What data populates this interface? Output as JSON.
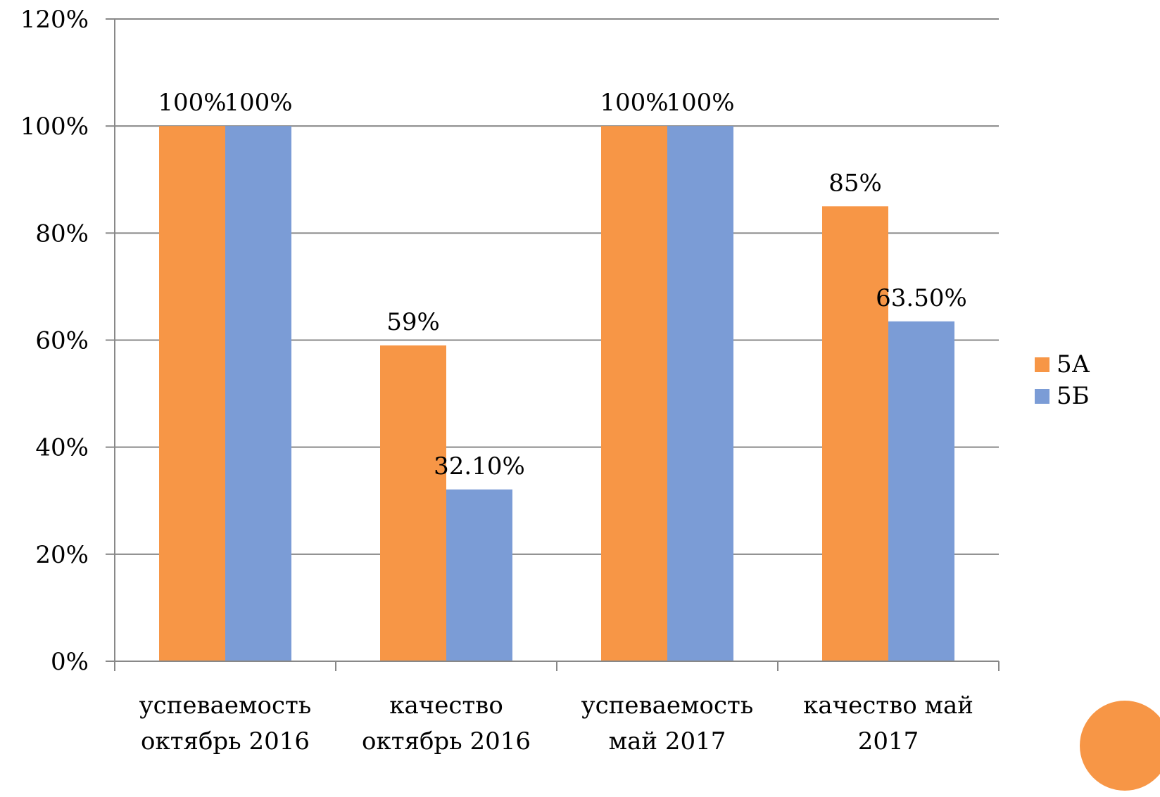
{
  "chart_data": {
    "type": "bar",
    "categories": [
      [
        "успеваемость",
        "октябрь 2016"
      ],
      [
        "качество",
        "октябрь 2016"
      ],
      [
        "успеваемость",
        "май 2017"
      ],
      [
        "качество май",
        "2017"
      ]
    ],
    "series": [
      {
        "name": "5А",
        "color": "#f79646",
        "values": [
          100,
          59,
          100,
          85
        ],
        "labels": [
          "100%",
          "59%",
          "100%",
          "85%"
        ]
      },
      {
        "name": "5Б",
        "color": "#7b9cd6",
        "values": [
          100,
          32.1,
          100,
          63.5
        ],
        "labels": [
          "100%",
          "32.10%",
          "100%",
          "63.50%"
        ]
      }
    ],
    "ylim": [
      0,
      120
    ],
    "yticks": [
      0,
      20,
      40,
      60,
      80,
      100,
      120
    ],
    "ytick_labels": [
      "0%",
      "20%",
      "40%",
      "60%",
      "80%",
      "100%",
      "120%"
    ],
    "grid": true,
    "legend_position": "right",
    "title": "",
    "xlabel": "",
    "ylabel": ""
  },
  "decor": {
    "circle_color": "#f79646"
  }
}
